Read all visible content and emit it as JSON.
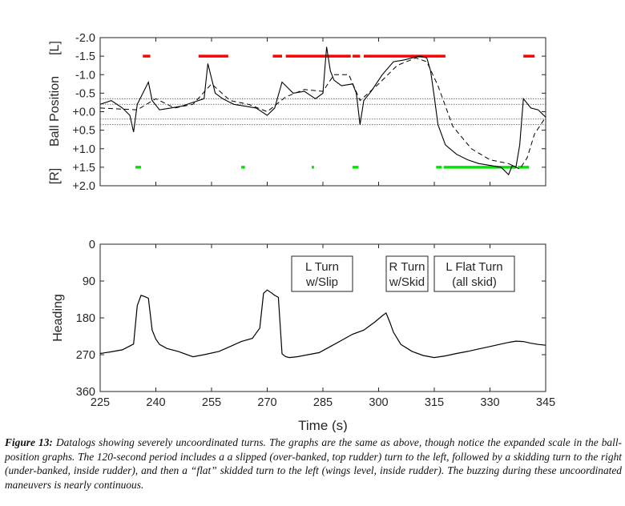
{
  "chart_data": [
    {
      "type": "line",
      "ylabel_main": "Ball Position",
      "ylabel_left_end": "[L]",
      "ylabel_right_end": "[R]",
      "ylim": [
        -2.0,
        2.0
      ],
      "y_reversed": true,
      "xlim": [
        225,
        345
      ],
      "yticks": [
        "-2.0",
        "-1.5",
        "-1.0",
        "-0.5",
        "+0.0",
        "+0.5",
        "+1.0",
        "+1.5",
        "+2.0"
      ],
      "reference_lines": [
        -0.35,
        -0.2,
        0.2,
        0.35
      ],
      "series": [
        {
          "style": "solid",
          "x": [
            225,
            228,
            231,
            233,
            234,
            235,
            236,
            238,
            239,
            241,
            244,
            247,
            250,
            253,
            254,
            255,
            256,
            258,
            261,
            264,
            267,
            270,
            272,
            274,
            277,
            280,
            283,
            285,
            286,
            287,
            288,
            290,
            293,
            294,
            295,
            296,
            298,
            301,
            304,
            307,
            309,
            311,
            313,
            314,
            315,
            316,
            318,
            321,
            324,
            327,
            330,
            333,
            335,
            336,
            337,
            338,
            339,
            341,
            343,
            345
          ],
          "y": [
            -0.2,
            -0.3,
            -0.1,
            0.1,
            0.55,
            -0.2,
            -0.4,
            -0.8,
            -0.3,
            -0.05,
            -0.1,
            -0.15,
            -0.25,
            -0.35,
            -1.3,
            -0.9,
            -0.5,
            -0.35,
            -0.2,
            -0.15,
            -0.1,
            0.1,
            -0.1,
            -0.8,
            -0.5,
            -0.55,
            -0.35,
            -0.5,
            -1.75,
            -1.1,
            -0.85,
            -0.7,
            -0.75,
            -0.5,
            0.35,
            -0.3,
            -0.55,
            -1.0,
            -1.35,
            -1.4,
            -1.45,
            -1.5,
            -1.45,
            -1.1,
            -0.4,
            0.35,
            0.9,
            1.15,
            1.3,
            1.4,
            1.45,
            1.5,
            1.7,
            1.45,
            1.5,
            0.9,
            -0.35,
            -0.1,
            -0.05,
            0.15
          ]
        },
        {
          "style": "dashed",
          "x": [
            225,
            235,
            240,
            245,
            250,
            255,
            260,
            265,
            270,
            275,
            280,
            285,
            288,
            292,
            295,
            300,
            305,
            310,
            313,
            316,
            320,
            325,
            330,
            335,
            338,
            340,
            342,
            345
          ],
          "y": [
            -0.1,
            -0.05,
            -0.35,
            -0.1,
            -0.2,
            -0.75,
            -0.3,
            -0.2,
            0.0,
            -0.4,
            -0.6,
            -0.55,
            -1.0,
            -1.0,
            -0.3,
            -0.75,
            -1.25,
            -1.45,
            -1.35,
            -0.7,
            0.4,
            1.0,
            1.3,
            1.4,
            1.55,
            1.25,
            0.6,
            0.15
          ]
        }
      ],
      "red_markers": [
        [
          236.5,
          238.5
        ],
        [
          251.5,
          259.5
        ],
        [
          271.5,
          274
        ],
        [
          275,
          292.5
        ],
        [
          293,
          295
        ],
        [
          296,
          318
        ],
        [
          339,
          342
        ]
      ],
      "green_markers": [
        [
          234.5,
          236
        ],
        [
          263,
          264
        ],
        [
          282,
          282.6
        ],
        [
          293,
          294.6
        ],
        [
          315.5,
          317
        ],
        [
          317.5,
          337
        ],
        [
          337.5,
          340.5
        ]
      ]
    },
    {
      "type": "line",
      "xlabel": "Time (s)",
      "ylabel": "Heading",
      "xlim": [
        225,
        345
      ],
      "ylim": [
        0,
        360
      ],
      "y_reversed": true,
      "xticks": [
        225,
        240,
        255,
        270,
        285,
        300,
        315,
        330,
        345
      ],
      "yticks": [
        0,
        90,
        180,
        270,
        360
      ],
      "annotations": [
        {
          "line1": "L Turn",
          "line2": "w/Slip"
        },
        {
          "line1": "R Turn",
          "line2": "w/Skid"
        },
        {
          "line1": "L Flat Turn",
          "line2": "(all skid)"
        }
      ],
      "series": [
        {
          "style": "solid",
          "x": [
            225,
            228,
            231,
            234,
            235,
            236,
            237,
            238,
            239,
            240,
            241,
            243,
            246,
            250,
            253,
            257,
            260,
            263,
            266,
            268,
            269,
            270,
            271,
            272,
            273,
            274,
            275,
            276,
            278,
            281,
            284,
            287,
            290,
            293,
            296,
            299,
            301,
            302,
            303,
            304,
            306,
            309,
            312,
            315,
            318,
            321,
            324,
            327,
            330,
            333,
            335,
            337,
            339,
            341,
            343,
            345
          ],
          "y": [
            267,
            263,
            258,
            244,
            150,
            125,
            128,
            132,
            210,
            232,
            245,
            255,
            262,
            275,
            270,
            262,
            250,
            238,
            230,
            205,
            120,
            112,
            118,
            125,
            130,
            268,
            275,
            277,
            275,
            270,
            265,
            250,
            235,
            220,
            210,
            190,
            175,
            168,
            190,
            215,
            245,
            262,
            272,
            277,
            273,
            267,
            262,
            256,
            250,
            244,
            240,
            237,
            238,
            242,
            245,
            247
          ]
        }
      ]
    }
  ],
  "caption": {
    "label": "Figure 13:",
    "text": "Datalogs showing severely uncoordinated turns.  The graphs are the same as above, though notice the expanded scale in the ball-position graphs.  The 120-second period includes a a slipped (over-banked, top rudder) turn to the left, followed by a skidding turn to the right (under-banked, inside rudder), and then a “flat” skidded turn to the left (wings level, inside rudder). The buzzing during these uncoordinated maneuvers is nearly continuous."
  },
  "colors": {
    "red_marker": "#ff0000",
    "green_marker": "#00e600",
    "trace": "#000000",
    "axis": "#262626"
  }
}
